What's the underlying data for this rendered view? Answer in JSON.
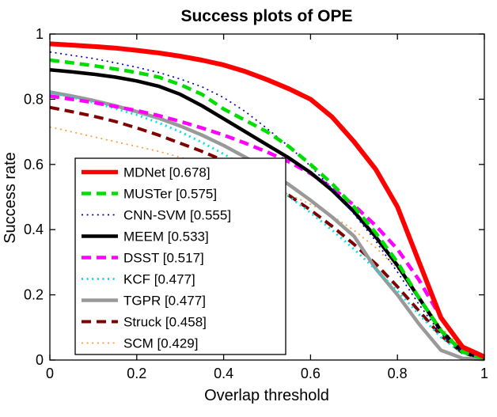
{
  "figure": {
    "background": "#ffffff"
  },
  "chart_data": {
    "type": "line",
    "title": "Success plots of OPE",
    "xlabel": "Overlap threshold",
    "ylabel": "Success rate",
    "xlim": [
      0,
      1
    ],
    "ylim": [
      0,
      1
    ],
    "x_ticks": [
      0,
      0.2,
      0.4,
      0.6,
      0.8,
      1
    ],
    "x_tick_labels": [
      "0",
      "0.2",
      "0.4",
      "0.6",
      "0.8",
      "1"
    ],
    "y_ticks": [
      0,
      0.2,
      0.4,
      0.6,
      0.8,
      1
    ],
    "y_tick_labels": [
      "0",
      "0.2",
      "0.4",
      "0.6",
      "0.8",
      "1"
    ],
    "grid": false,
    "legend_position": "lower-left",
    "x": [
      0,
      0.05,
      0.1,
      0.15,
      0.2,
      0.25,
      0.3,
      0.35,
      0.4,
      0.45,
      0.5,
      0.55,
      0.6,
      0.65,
      0.7,
      0.75,
      0.8,
      0.85,
      0.9,
      0.95,
      1
    ],
    "series": [
      {
        "name": "MDNet",
        "score": 0.678,
        "legend_label": "MDNet [0.678]",
        "color": "#ff0000",
        "dash": "solid",
        "width": 6,
        "values": [
          0.97,
          0.966,
          0.962,
          0.957,
          0.95,
          0.942,
          0.932,
          0.92,
          0.905,
          0.885,
          0.86,
          0.832,
          0.8,
          0.745,
          0.67,
          0.585,
          0.47,
          0.3,
          0.13,
          0.04,
          0.01
        ]
      },
      {
        "name": "MUSTer",
        "score": 0.575,
        "legend_label": "MUSTer [0.575]",
        "color": "#00dd00",
        "dash": "dashed",
        "width": 4.5,
        "values": [
          0.92,
          0.912,
          0.903,
          0.893,
          0.882,
          0.868,
          0.845,
          0.815,
          0.77,
          0.735,
          0.7,
          0.655,
          0.6,
          0.54,
          0.47,
          0.39,
          0.3,
          0.19,
          0.09,
          0.025,
          0.005
        ]
      },
      {
        "name": "CNN-SVM",
        "score": 0.555,
        "legend_label": "CNN-SVM [0.555]",
        "color": "#0000bb",
        "dash": "dotted",
        "width": 1.7,
        "values": [
          0.945,
          0.935,
          0.925,
          0.912,
          0.898,
          0.882,
          0.862,
          0.838,
          0.805,
          0.762,
          0.71,
          0.655,
          0.595,
          0.525,
          0.448,
          0.365,
          0.27,
          0.17,
          0.08,
          0.025,
          0.005
        ]
      },
      {
        "name": "MEEM",
        "score": 0.533,
        "legend_label": "MEEM [0.533]",
        "color": "#000000",
        "dash": "solid",
        "width": 4.5,
        "values": [
          0.89,
          0.884,
          0.877,
          0.868,
          0.856,
          0.84,
          0.815,
          0.78,
          0.74,
          0.7,
          0.66,
          0.62,
          0.575,
          0.52,
          0.455,
          0.378,
          0.29,
          0.19,
          0.09,
          0.025,
          0.005
        ]
      },
      {
        "name": "DSST",
        "score": 0.517,
        "legend_label": "DSST [0.517]",
        "color": "#ff00ff",
        "dash": "dashed",
        "width": 4.5,
        "values": [
          0.81,
          0.8,
          0.79,
          0.778,
          0.765,
          0.75,
          0.732,
          0.712,
          0.69,
          0.665,
          0.638,
          0.608,
          0.572,
          0.528,
          0.475,
          0.412,
          0.34,
          0.245,
          0.13,
          0.04,
          0.005
        ]
      },
      {
        "name": "KCF",
        "score": 0.477,
        "legend_label": "KCF [0.477]",
        "color": "#00e5e5",
        "dash": "dotted",
        "width": 3,
        "values": [
          0.82,
          0.806,
          0.79,
          0.772,
          0.752,
          0.728,
          0.7,
          0.668,
          0.632,
          0.592,
          0.548,
          0.502,
          0.452,
          0.398,
          0.34,
          0.278,
          0.212,
          0.14,
          0.07,
          0.02,
          0.003
        ]
      },
      {
        "name": "TGPR",
        "score": 0.477,
        "legend_label": "TGPR [0.477]",
        "color": "#999999",
        "dash": "solid",
        "width": 4.5,
        "values": [
          0.822,
          0.81,
          0.796,
          0.78,
          0.762,
          0.742,
          0.718,
          0.69,
          0.658,
          0.622,
          0.582,
          0.538,
          0.49,
          0.438,
          0.38,
          0.28,
          0.2,
          0.11,
          0.03,
          0.005,
          0.002
        ]
      },
      {
        "name": "Struck",
        "score": 0.458,
        "legend_label": "Struck [0.458]",
        "color": "#800000",
        "dash": "dashed",
        "width": 4,
        "values": [
          0.775,
          0.762,
          0.748,
          0.732,
          0.712,
          0.69,
          0.665,
          0.64,
          0.612,
          0.58,
          0.545,
          0.505,
          0.46,
          0.41,
          0.355,
          0.295,
          0.225,
          0.15,
          0.075,
          0.022,
          0.003
        ]
      },
      {
        "name": "SCM",
        "score": 0.429,
        "legend_label": "SCM [0.429]",
        "color": "#ff9933",
        "dash": "dotted",
        "width": 1.7,
        "values": [
          0.715,
          0.7,
          0.685,
          0.67,
          0.655,
          0.64,
          0.622,
          0.603,
          0.582,
          0.56,
          0.535,
          0.508,
          0.478,
          0.442,
          0.398,
          0.345,
          0.28,
          0.195,
          0.1,
          0.032,
          0.005
        ]
      }
    ]
  }
}
